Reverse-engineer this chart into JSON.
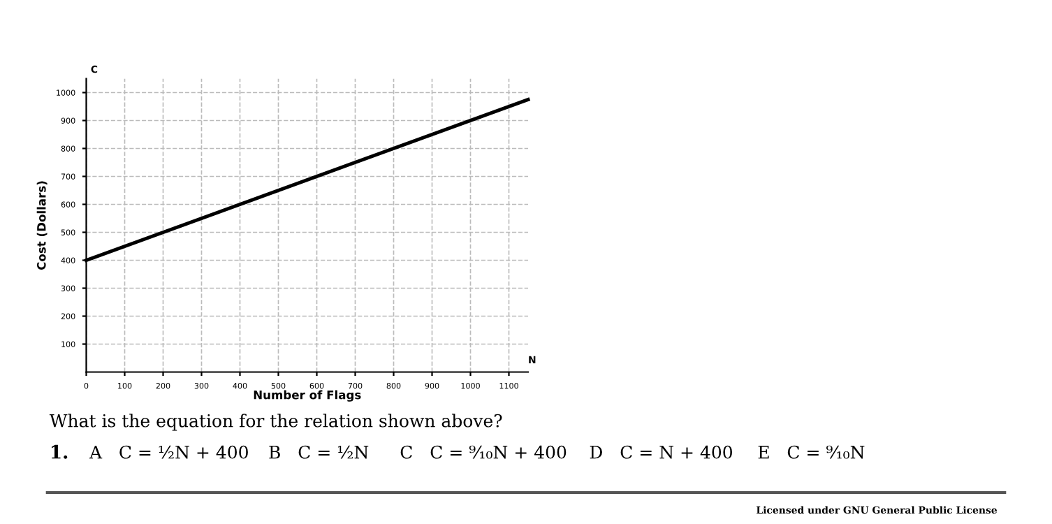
{
  "chart_data": {
    "type": "line",
    "xlabel": "Number of Flags",
    "ylabel": "Cost (Dollars)",
    "x": [
      0,
      1150
    ],
    "series": [
      {
        "color": "#000000",
        "values": [
          400,
          975
        ]
      }
    ],
    "xlim": [
      0,
      1150
    ],
    "ylim": [
      0,
      1050
    ],
    "xticks": [
      0,
      100,
      200,
      300,
      400,
      500,
      600,
      700,
      800,
      900,
      1000,
      1100
    ],
    "yticks": [
      100,
      200,
      300,
      400,
      500,
      600,
      700,
      800,
      900,
      1000
    ],
    "grid": true,
    "marker": "none",
    "line_style": "solid",
    "annotations": [
      "C",
      "N",
      "What is the equation for the relation shown above?",
      "1.",
      "A   C = ½N + 400",
      "B   C = ½N",
      "C   C = ⁹⁄₁₀N + 400",
      "D   C = N + 400",
      "E   C = ⁹⁄₁₀N",
      "Licensed under GNU General Public License"
    ]
  }
}
